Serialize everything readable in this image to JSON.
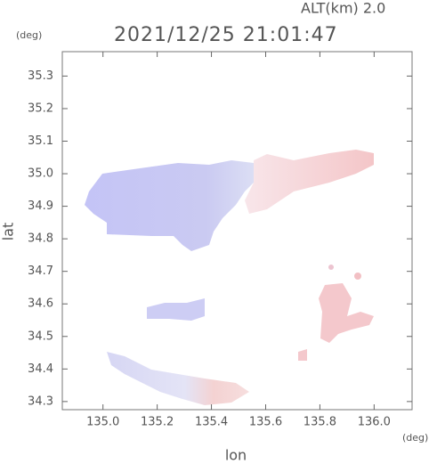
{
  "chart_data": {
    "type": "map",
    "altitude_label": "ALT(km) 2.0",
    "title": "2021/12/25 21:01:47",
    "y_unit": "(deg)",
    "x_unit": "(deg)",
    "xlabel": "lon",
    "ylabel": "lat",
    "xlim": [
      134.85,
      136.14
    ],
    "ylim": [
      34.275,
      35.375
    ],
    "xticks": [
      {
        "value": 135,
        "label": "135.0"
      },
      135.2,
      135.4,
      135.6,
      135.8,
      {
        "value": 136,
        "label": "136.0"
      }
    ],
    "yticks": [
      34.3,
      34.4,
      34.5,
      34.6,
      34.7,
      34.8,
      34.9,
      {
        "value": 35,
        "label": "35.0"
      },
      35.1,
      35.2,
      35.3
    ]
  }
}
